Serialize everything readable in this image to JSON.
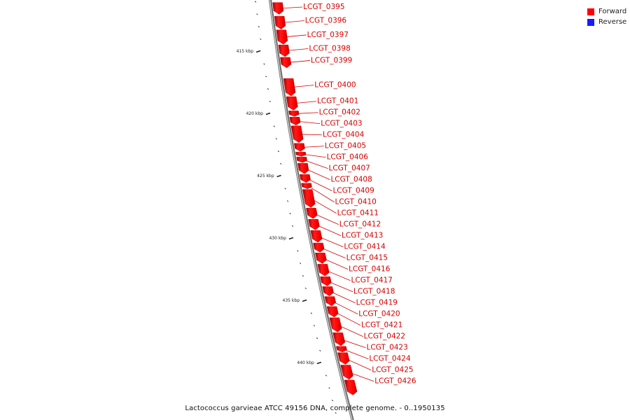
{
  "legend": {
    "forward_label": "Forward",
    "reverse_label": "Reverse",
    "forward_color": "#ff0000",
    "reverse_color": "#1a1aff"
  },
  "caption": "Lactococcus garvieae ATCC 49156 DNA, complete genome. - 0..1950135",
  "colors": {
    "gene": "#ff0000",
    "label": "#d40000",
    "backbone": "#909090",
    "tick": "#222222"
  },
  "chart_data": {
    "type": "genome-map",
    "ticks": [
      {
        "kbp": 415,
        "label": "415 kbp"
      },
      {
        "kbp": 420,
        "label": "420 kbp"
      },
      {
        "kbp": 425,
        "label": "425 kbp"
      },
      {
        "kbp": 430,
        "label": "430 kbp"
      },
      {
        "kbp": 435,
        "label": "435 kbp"
      },
      {
        "kbp": 440,
        "label": "440 kbp"
      }
    ],
    "genes": [
      {
        "name": "LCGT_0395",
        "start_kbp": 411.1,
        "end_kbp": 412.05,
        "strand": "forward"
      },
      {
        "name": "LCGT_0396",
        "start_kbp": 412.2,
        "end_kbp": 413.25,
        "strand": "forward"
      },
      {
        "name": "LCGT_0397",
        "start_kbp": 413.3,
        "end_kbp": 414.45,
        "strand": "forward"
      },
      {
        "name": "LCGT_0398",
        "start_kbp": 414.5,
        "end_kbp": 415.45,
        "strand": "forward"
      },
      {
        "name": "LCGT_0399",
        "start_kbp": 415.5,
        "end_kbp": 416.35,
        "strand": "forward"
      },
      {
        "name": "LCGT_0400",
        "start_kbp": 417.2,
        "end_kbp": 418.6,
        "strand": "forward"
      },
      {
        "name": "LCGT_0401",
        "start_kbp": 418.65,
        "end_kbp": 419.75,
        "strand": "forward"
      },
      {
        "name": "LCGT_0402",
        "start_kbp": 419.8,
        "end_kbp": 420.25,
        "strand": "forward"
      },
      {
        "name": "LCGT_0403",
        "start_kbp": 420.3,
        "end_kbp": 420.95,
        "strand": "forward"
      },
      {
        "name": "LCGT_0404",
        "start_kbp": 421.0,
        "end_kbp": 422.35,
        "strand": "forward"
      },
      {
        "name": "LCGT_0405",
        "start_kbp": 422.4,
        "end_kbp": 423.05,
        "strand": "forward"
      },
      {
        "name": "LCGT_0406",
        "start_kbp": 423.1,
        "end_kbp": 423.45,
        "strand": "forward"
      },
      {
        "name": "LCGT_0407",
        "start_kbp": 423.5,
        "end_kbp": 423.95,
        "strand": "forward"
      },
      {
        "name": "LCGT_0408",
        "start_kbp": 424.0,
        "end_kbp": 424.85,
        "strand": "forward"
      },
      {
        "name": "LCGT_0409",
        "start_kbp": 424.9,
        "end_kbp": 425.55,
        "strand": "forward"
      },
      {
        "name": "LCGT_0410",
        "start_kbp": 425.6,
        "end_kbp": 426.05,
        "strand": "forward"
      },
      {
        "name": "LCGT_0411",
        "start_kbp": 426.1,
        "end_kbp": 427.55,
        "strand": "forward"
      },
      {
        "name": "LCGT_0412",
        "start_kbp": 427.6,
        "end_kbp": 428.45,
        "strand": "forward"
      },
      {
        "name": "LCGT_0413",
        "start_kbp": 428.5,
        "end_kbp": 429.35,
        "strand": "forward"
      },
      {
        "name": "LCGT_0414",
        "start_kbp": 429.4,
        "end_kbp": 430.35,
        "strand": "forward"
      },
      {
        "name": "LCGT_0415",
        "start_kbp": 430.4,
        "end_kbp": 431.15,
        "strand": "forward"
      },
      {
        "name": "LCGT_0416",
        "start_kbp": 431.2,
        "end_kbp": 432.05,
        "strand": "forward"
      },
      {
        "name": "LCGT_0417",
        "start_kbp": 432.1,
        "end_kbp": 433.05,
        "strand": "forward"
      },
      {
        "name": "LCGT_0418",
        "start_kbp": 433.1,
        "end_kbp": 433.85,
        "strand": "forward"
      },
      {
        "name": "LCGT_0419",
        "start_kbp": 433.9,
        "end_kbp": 434.65,
        "strand": "forward"
      },
      {
        "name": "LCGT_0420",
        "start_kbp": 434.7,
        "end_kbp": 435.45,
        "strand": "forward"
      },
      {
        "name": "LCGT_0421",
        "start_kbp": 435.5,
        "end_kbp": 436.35,
        "strand": "forward"
      },
      {
        "name": "LCGT_0422",
        "start_kbp": 436.4,
        "end_kbp": 437.55,
        "strand": "forward"
      },
      {
        "name": "LCGT_0423",
        "start_kbp": 437.6,
        "end_kbp": 438.65,
        "strand": "forward"
      },
      {
        "name": "LCGT_0424",
        "start_kbp": 438.7,
        "end_kbp": 439.15,
        "strand": "forward"
      },
      {
        "name": "LCGT_0425",
        "start_kbp": 439.2,
        "end_kbp": 440.15,
        "strand": "forward"
      },
      {
        "name": "LCGT_0426",
        "start_kbp": 440.2,
        "end_kbp": 441.35,
        "strand": "forward"
      },
      {
        "name": "",
        "start_kbp": 441.4,
        "end_kbp": 442.6,
        "strand": "forward"
      }
    ]
  }
}
